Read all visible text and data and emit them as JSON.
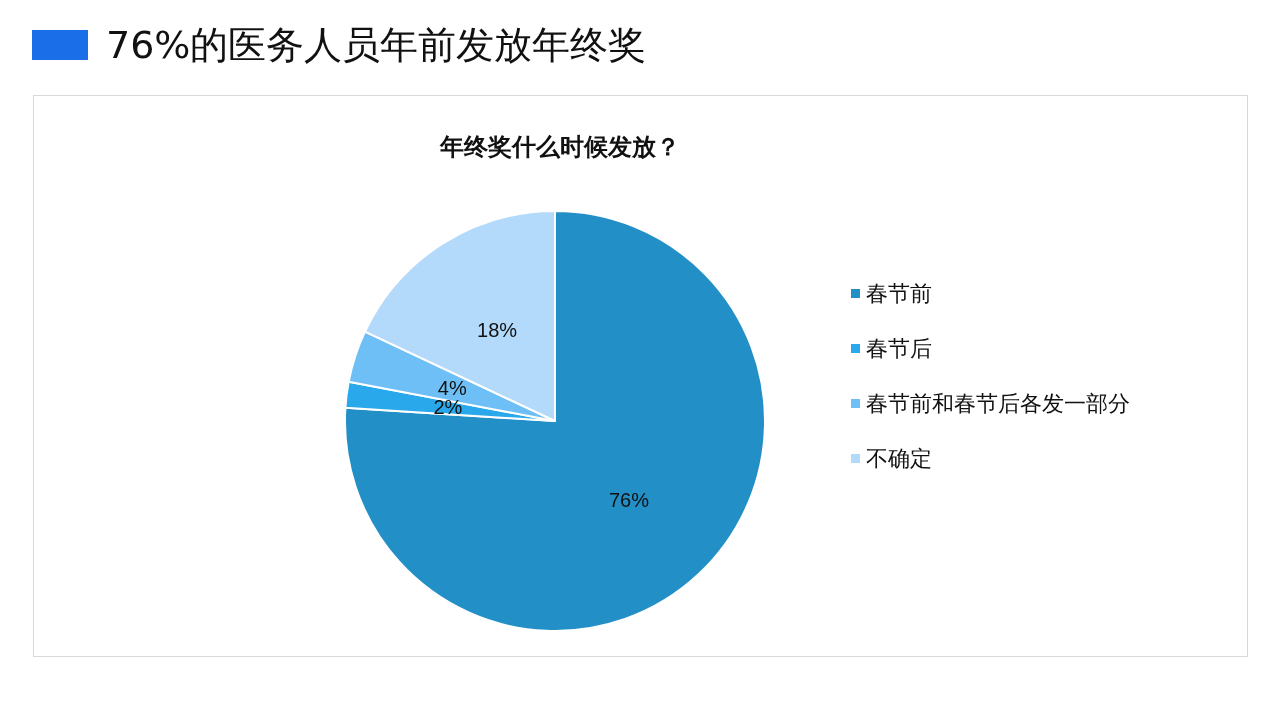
{
  "chart_data": {
    "type": "pie",
    "title": "76%的医务人员年前发放年终奖",
    "subtitle": "年终奖什么时候发放？",
    "categories": [
      "春节前",
      "春节后",
      "春节前和春节后各发一部分",
      "不确定"
    ],
    "values": [
      76,
      2,
      4,
      18
    ],
    "colors": [
      "#238fc7",
      "#29a8ec",
      "#6fbff7",
      "#b3d9fb"
    ],
    "value_labels": [
      "76%",
      "2%",
      "4%",
      "18%"
    ],
    "legend": "right"
  }
}
